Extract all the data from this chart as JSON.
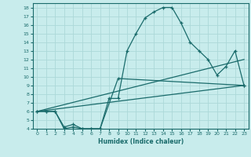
{
  "xlabel": "Humidex (Indice chaleur)",
  "xlim": [
    -0.5,
    23.5
  ],
  "ylim": [
    4,
    18.5
  ],
  "xticks": [
    0,
    1,
    2,
    3,
    4,
    5,
    6,
    7,
    8,
    9,
    10,
    11,
    12,
    13,
    14,
    15,
    16,
    17,
    18,
    19,
    20,
    21,
    22,
    23
  ],
  "yticks": [
    4,
    5,
    6,
    7,
    8,
    9,
    10,
    11,
    12,
    13,
    14,
    15,
    16,
    17,
    18
  ],
  "bg_color": "#c8ecec",
  "grid_color": "#acd8d8",
  "line_color": "#1a6b6b",
  "line1_x": [
    0,
    1,
    2,
    3,
    4,
    5,
    6,
    7,
    8,
    9,
    10,
    11,
    12,
    13,
    14,
    15,
    16,
    17,
    18,
    19,
    20,
    21,
    22,
    23
  ],
  "line1_y": [
    6,
    6,
    6,
    4,
    4.2,
    4,
    4,
    4,
    7.5,
    7.5,
    13,
    15,
    16.8,
    17.5,
    18,
    18,
    16.2,
    14,
    13,
    12,
    10.2,
    11.2,
    13,
    9
  ],
  "line2_x": [
    0,
    1,
    2,
    3,
    4,
    5,
    6,
    7,
    9,
    23
  ],
  "line2_y": [
    6,
    6,
    6,
    4.2,
    4.5,
    4,
    4,
    4,
    9.8,
    9
  ],
  "line3_x": [
    0,
    23
  ],
  "line3_y": [
    6,
    12
  ],
  "line4_x": [
    0,
    23
  ],
  "line4_y": [
    6,
    9
  ]
}
